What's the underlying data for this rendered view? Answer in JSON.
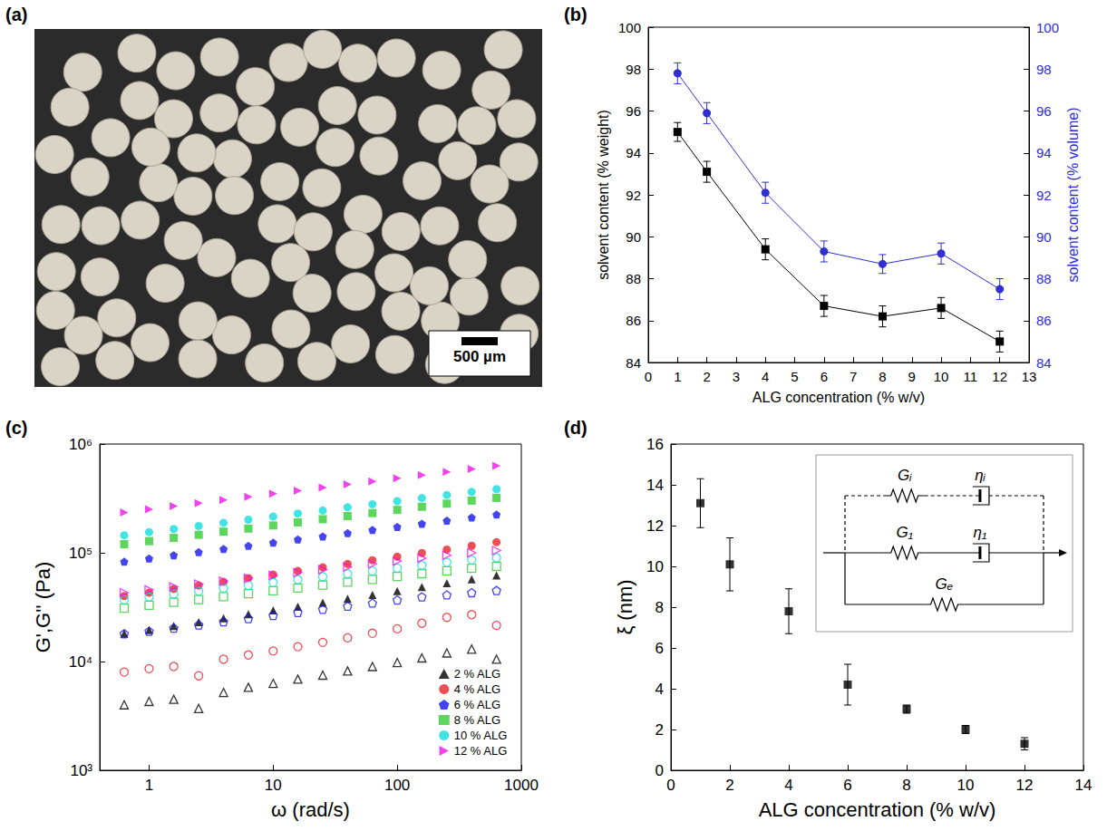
{
  "chart_data": [
    {
      "panel": "(a)",
      "type": "photo",
      "scale_bar": "500 µm"
    },
    {
      "panel": "(b)",
      "type": "line",
      "xlabel": "ALG concentration (% w/v)",
      "ylabel": "solvent content (% weight)",
      "y2label": "solvent content (% volume)",
      "x": [
        1,
        2,
        4,
        6,
        8,
        10,
        12
      ],
      "xlim": [
        0,
        13
      ],
      "xticks": [
        0,
        1,
        2,
        3,
        4,
        5,
        6,
        7,
        8,
        9,
        10,
        11,
        12,
        13
      ],
      "ylim": [
        84,
        100
      ],
      "yticks": [
        84,
        86,
        88,
        90,
        92,
        94,
        96,
        98,
        100
      ],
      "y2lim": [
        84,
        100
      ],
      "y2ticks": [
        84,
        86,
        88,
        90,
        92,
        94,
        96,
        98,
        100
      ],
      "grid": false,
      "series": [
        {
          "color": "#000000",
          "marker": "square",
          "values": [
            95.0,
            93.1,
            89.4,
            86.7,
            86.2,
            86.6,
            85.0
          ],
          "errors": [
            0.45,
            0.5,
            0.5,
            0.5,
            0.5,
            0.5,
            0.5
          ]
        },
        {
          "color": "#2f2fd0",
          "marker": "circle",
          "axis": "y2",
          "values": [
            97.8,
            95.9,
            92.1,
            89.3,
            88.7,
            89.2,
            87.5
          ],
          "errors": [
            0.5,
            0.5,
            0.5,
            0.5,
            0.45,
            0.5,
            0.5
          ]
        }
      ]
    },
    {
      "panel": "(c)",
      "type": "scatter",
      "log": true,
      "xlabel": "ω (rad/s)",
      "ylabel": "G',G'' (Pa)",
      "x": [
        0.63,
        1,
        1.58,
        2.51,
        3.98,
        6.31,
        10,
        15.8,
        25.1,
        39.8,
        63.1,
        100,
        158,
        251,
        398,
        631
      ],
      "xlim": [
        0.4,
        1000
      ],
      "xticks": [
        1,
        10,
        100,
        1000
      ],
      "ylim": [
        1000,
        1000000
      ],
      "yticks": [
        {
          "value": 1000,
          "label": "10³"
        },
        {
          "value": 10000,
          "label": "10⁴"
        },
        {
          "value": 100000,
          "label": "10⁵"
        },
        {
          "value": 1000000,
          "label": "10⁶"
        }
      ],
      "grid": false,
      "legend": "lower right",
      "series": [
        {
          "name": "2 % ALG",
          "color": "#000000",
          "marker": "triangle",
          "values": [
            18000,
            19500,
            21200,
            23000,
            25000,
            27200,
            29500,
            32000,
            34800,
            37800,
            41000,
            44500,
            48500,
            52500,
            57000,
            62000
          ],
          "loss_values": [
            4000,
            4300,
            4500,
            3700,
            5200,
            5800,
            6300,
            6900,
            7500,
            8200,
            9000,
            9800,
            10800,
            12000,
            13000,
            10500
          ]
        },
        {
          "name": "4 % ALG",
          "color": "#e8232a",
          "marker": "circle",
          "values": [
            40000,
            43000,
            46500,
            50000,
            54000,
            58500,
            63000,
            68000,
            73500,
            79000,
            85500,
            92000,
            99500,
            107000,
            116000,
            125000
          ],
          "loss_values": [
            8000,
            8600,
            9000,
            7400,
            10500,
            11500,
            12500,
            13700,
            15000,
            16500,
            18200,
            20000,
            22500,
            25500,
            27000,
            21500
          ]
        },
        {
          "name": "6 % ALG",
          "color": "#1515f0",
          "marker": "pentagon",
          "values": [
            83000,
            88500,
            95000,
            101500,
            108500,
            116000,
            124000,
            132500,
            141500,
            151500,
            162000,
            173000,
            185000,
            197500,
            211000,
            225000
          ],
          "loss_values": [
            18000,
            19000,
            20300,
            21700,
            23200,
            24800,
            26500,
            28300,
            30200,
            32300,
            34500,
            36800,
            39300,
            41000,
            43000,
            45000
          ]
        },
        {
          "name": "8 % ALG",
          "color": "#33cc33",
          "marker": "square",
          "values": [
            120000,
            128000,
            137000,
            146500,
            156500,
            167000,
            178500,
            190500,
            203500,
            217500,
            232000,
            248000,
            265000,
            283000,
            302000,
            320000
          ],
          "loss_values": [
            31000,
            33000,
            35000,
            37200,
            39500,
            42000,
            44700,
            47500,
            50500,
            53700,
            57000,
            60500,
            64300,
            68300,
            72000,
            75000
          ]
        },
        {
          "name": "10 % ALG",
          "color": "#11dddd",
          "marker": "circle",
          "values": [
            145000,
            155000,
            165500,
            176500,
            188500,
            201500,
            215000,
            229500,
            245000,
            262000,
            279500,
            298500,
            319000,
            340500,
            363000,
            385000
          ],
          "loss_values": [
            37000,
            39300,
            41800,
            44400,
            47200,
            50200,
            53300,
            56700,
            60200,
            64000,
            68000,
            72300,
            76800,
            81600,
            86000,
            90000
          ]
        },
        {
          "name": "12 % ALG",
          "color": "#ee11ee",
          "marker": "triangle-right",
          "values": [
            235000,
            251000,
            268000,
            286500,
            306000,
            327000,
            349000,
            373000,
            398000,
            425000,
            454000,
            485000,
            518000,
            553000,
            590000,
            630000
          ],
          "loss_values": [
            43000,
            45700,
            48600,
            51600,
            54800,
            58300,
            62000,
            65800,
            70000,
            74300,
            79000,
            84000,
            89200,
            94800,
            100000,
            105000
          ]
        }
      ]
    },
    {
      "panel": "(d)",
      "type": "scatter",
      "xlabel": "ALG concentration (% w/v)",
      "ylabel": "ξ (nm)",
      "x": [
        1,
        2,
        4,
        6,
        8,
        10,
        12
      ],
      "xlim": [
        0,
        14
      ],
      "xticks": [
        0,
        2,
        4,
        6,
        8,
        10,
        12,
        14
      ],
      "ylim": [
        0,
        16
      ],
      "yticks": [
        0,
        2,
        4,
        6,
        8,
        10,
        12,
        14,
        16
      ],
      "grid": false,
      "series": [
        {
          "color": "#000000",
          "marker": "square",
          "values": [
            13.1,
            10.1,
            7.8,
            4.2,
            3.0,
            2.0,
            1.3
          ],
          "errors": [
            1.2,
            1.3,
            1.1,
            1.0,
            0.2,
            0.2,
            0.3
          ]
        }
      ],
      "inset": {
        "rows": [
          [
            "Gᵢ",
            "ηᵢ"
          ],
          [
            "G₁",
            "η₁"
          ],
          [
            "Gₑ"
          ]
        ]
      }
    }
  ]
}
